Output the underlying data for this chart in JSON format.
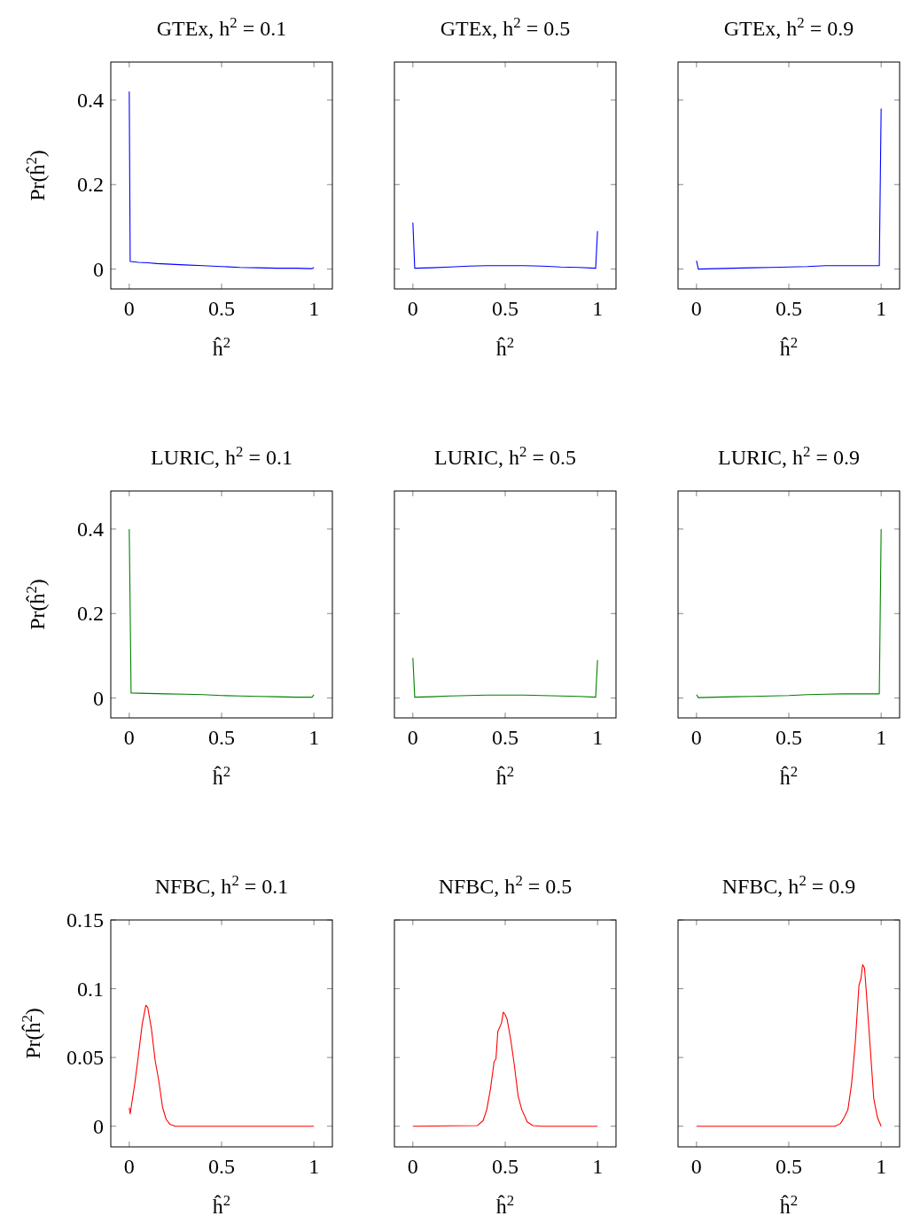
{
  "chart_data": [
    {
      "type": "line",
      "title": "GTEx, h$^{2}$ = 0.1",
      "xlabel": "ĥ$^{2}$",
      "ylabel": "Pr(ĥ$^{2}$)",
      "xlim": [
        -0.1,
        1.1
      ],
      "ylim": [
        -0.047,
        0.49
      ],
      "xticks": [
        0,
        0.5,
        1
      ],
      "yticks": [
        0,
        0.2,
        0.4
      ],
      "series": [
        {
          "color": "#0000ff",
          "x": [
            0,
            0.005,
            0.05,
            0.1,
            0.15,
            0.2,
            0.3,
            0.4,
            0.5,
            0.6,
            0.7,
            0.8,
            0.9,
            0.99,
            1
          ],
          "values": [
            0.42,
            0.018,
            0.016,
            0.015,
            0.013,
            0.012,
            0.01,
            0.008,
            0.006,
            0.004,
            0.003,
            0.002,
            0.002,
            0.001,
            0.004
          ]
        }
      ]
    },
    {
      "type": "line",
      "title": "GTEx, h$^{2}$ = 0.5",
      "xlabel": "ĥ$^{2}$",
      "xlim": [
        -0.1,
        1.1
      ],
      "ylim": [
        -0.047,
        0.49
      ],
      "xticks": [
        0,
        0.5,
        1
      ],
      "yticks": [
        0,
        0.2,
        0.4
      ],
      "tick_labels": "x",
      "series": [
        {
          "color": "#0000ff",
          "x": [
            0,
            0.01,
            0.1,
            0.2,
            0.3,
            0.4,
            0.5,
            0.6,
            0.7,
            0.8,
            0.9,
            0.99,
            1
          ],
          "values": [
            0.11,
            0.002,
            0.003,
            0.005,
            0.007,
            0.008,
            0.008,
            0.008,
            0.007,
            0.005,
            0.004,
            0.002,
            0.09
          ]
        }
      ]
    },
    {
      "type": "line",
      "title": "GTEx, h$^{2}$ = 0.9",
      "xlabel": "ĥ$^{2}$",
      "xlim": [
        -0.1,
        1.1
      ],
      "ylim": [
        -0.047,
        0.49
      ],
      "xticks": [
        0,
        0.5,
        1
      ],
      "yticks": [
        0,
        0.2,
        0.4
      ],
      "tick_labels": "x",
      "series": [
        {
          "color": "#0000ff",
          "x": [
            0,
            0.01,
            0.1,
            0.2,
            0.3,
            0.4,
            0.5,
            0.6,
            0.7,
            0.8,
            0.9,
            0.99,
            1
          ],
          "values": [
            0.02,
            0,
            0.001,
            0.002,
            0.003,
            0.004,
            0.005,
            0.006,
            0.008,
            0.008,
            0.008,
            0.008,
            0.38
          ]
        }
      ]
    },
    {
      "type": "line",
      "title": "LURIC, h$^{2}$ = 0.1",
      "xlabel": "ĥ$^{2}$",
      "ylabel": "Pr(ĥ$^{2}$)",
      "xlim": [
        -0.1,
        1.1
      ],
      "ylim": [
        -0.047,
        0.49
      ],
      "xticks": [
        0,
        0.5,
        1
      ],
      "yticks": [
        0,
        0.2,
        0.4
      ],
      "series": [
        {
          "color": "#008000",
          "x": [
            0,
            0.01,
            0.1,
            0.2,
            0.3,
            0.4,
            0.5,
            0.6,
            0.7,
            0.8,
            0.9,
            0.99,
            1
          ],
          "values": [
            0.4,
            0.012,
            0.011,
            0.01,
            0.009,
            0.008,
            0.006,
            0.005,
            0.004,
            0.003,
            0.002,
            0.002,
            0.008
          ]
        }
      ]
    },
    {
      "type": "line",
      "title": "LURIC, h$^{2}$ = 0.5",
      "xlabel": "ĥ$^{2}$",
      "xlim": [
        -0.1,
        1.1
      ],
      "ylim": [
        -0.047,
        0.49
      ],
      "xticks": [
        0,
        0.5,
        1
      ],
      "yticks": [
        0,
        0.2,
        0.4
      ],
      "tick_labels": "x",
      "series": [
        {
          "color": "#008000",
          "x": [
            0,
            0.01,
            0.1,
            0.2,
            0.3,
            0.4,
            0.5,
            0.6,
            0.7,
            0.8,
            0.9,
            0.99,
            1
          ],
          "values": [
            0.095,
            0.002,
            0.003,
            0.005,
            0.006,
            0.007,
            0.007,
            0.007,
            0.006,
            0.005,
            0.004,
            0.002,
            0.09
          ]
        }
      ]
    },
    {
      "type": "line",
      "title": "LURIC, h$^{2}$ = 0.9",
      "xlabel": "ĥ$^{2}$",
      "xlim": [
        -0.1,
        1.1
      ],
      "ylim": [
        -0.047,
        0.49
      ],
      "xticks": [
        0,
        0.5,
        1
      ],
      "yticks": [
        0,
        0.2,
        0.4
      ],
      "tick_labels": "x",
      "series": [
        {
          "color": "#008000",
          "x": [
            0,
            0.01,
            0.1,
            0.2,
            0.3,
            0.4,
            0.5,
            0.6,
            0.7,
            0.8,
            0.9,
            0.99,
            1
          ],
          "values": [
            0.008,
            0.001,
            0.002,
            0.003,
            0.004,
            0.005,
            0.006,
            0.008,
            0.009,
            0.01,
            0.01,
            0.01,
            0.4
          ]
        }
      ]
    },
    {
      "type": "line",
      "title": "NFBC, h$^{2}$ = 0.1",
      "xlabel": "ĥ$^{2}$",
      "ylabel": "Pr(ĥ$^{2}$)",
      "xlim": [
        -0.1,
        1.1
      ],
      "ylim": [
        -0.015,
        0.15
      ],
      "xticks": [
        0,
        0.5,
        1
      ],
      "yticks": [
        0,
        0.05,
        0.1,
        0.15
      ],
      "series": [
        {
          "color": "#ff0000",
          "x": [
            0,
            0.005,
            0.03,
            0.05,
            0.07,
            0.09,
            0.1,
            0.12,
            0.14,
            0.16,
            0.18,
            0.2,
            0.22,
            0.25,
            0.5,
            1
          ],
          "values": [
            0.0135,
            0.009,
            0.031,
            0.052,
            0.074,
            0.088,
            0.0865,
            0.071,
            0.048,
            0.033,
            0.014,
            0.005,
            0.0015,
            0,
            0,
            0
          ]
        }
      ]
    },
    {
      "type": "line",
      "title": "NFBC, h$^{2}$ = 0.5",
      "xlabel": "ĥ$^{2}$",
      "xlim": [
        -0.1,
        1.1
      ],
      "ylim": [
        -0.015,
        0.15
      ],
      "xticks": [
        0,
        0.5,
        1
      ],
      "yticks": [
        0,
        0.05,
        0.1,
        0.15
      ],
      "tick_labels": "x",
      "series": [
        {
          "color": "#ff0000",
          "x": [
            0,
            0.35,
            0.38,
            0.4,
            0.42,
            0.44,
            0.45,
            0.46,
            0.48,
            0.49,
            0.5,
            0.51,
            0.53,
            0.55,
            0.57,
            0.59,
            0.62,
            0.65,
            0.7,
            1
          ],
          "values": [
            0,
            0.0005,
            0.004,
            0.012,
            0.027,
            0.047,
            0.049,
            0.069,
            0.075,
            0.083,
            0.081,
            0.078,
            0.063,
            0.044,
            0.022,
            0.012,
            0.003,
            0.0005,
            0,
            0
          ]
        }
      ]
    },
    {
      "type": "line",
      "title": "NFBC, h$^{2}$ = 0.9",
      "xlabel": "ĥ$^{2}$",
      "xlim": [
        -0.1,
        1.1
      ],
      "ylim": [
        -0.015,
        0.15
      ],
      "xticks": [
        0,
        0.5,
        1
      ],
      "yticks": [
        0,
        0.05,
        0.1,
        0.15
      ],
      "tick_labels": "x",
      "series": [
        {
          "color": "#ff0000",
          "x": [
            0,
            0.75,
            0.78,
            0.8,
            0.82,
            0.84,
            0.86,
            0.88,
            0.89,
            0.9,
            0.91,
            0.92,
            0.94,
            0.96,
            0.98,
            1
          ],
          "values": [
            0,
            0,
            0.002,
            0.0064,
            0.012,
            0.031,
            0.061,
            0.1026,
            0.107,
            0.1175,
            0.115,
            0.097,
            0.059,
            0.02,
            0.0064,
            0
          ]
        }
      ]
    }
  ]
}
